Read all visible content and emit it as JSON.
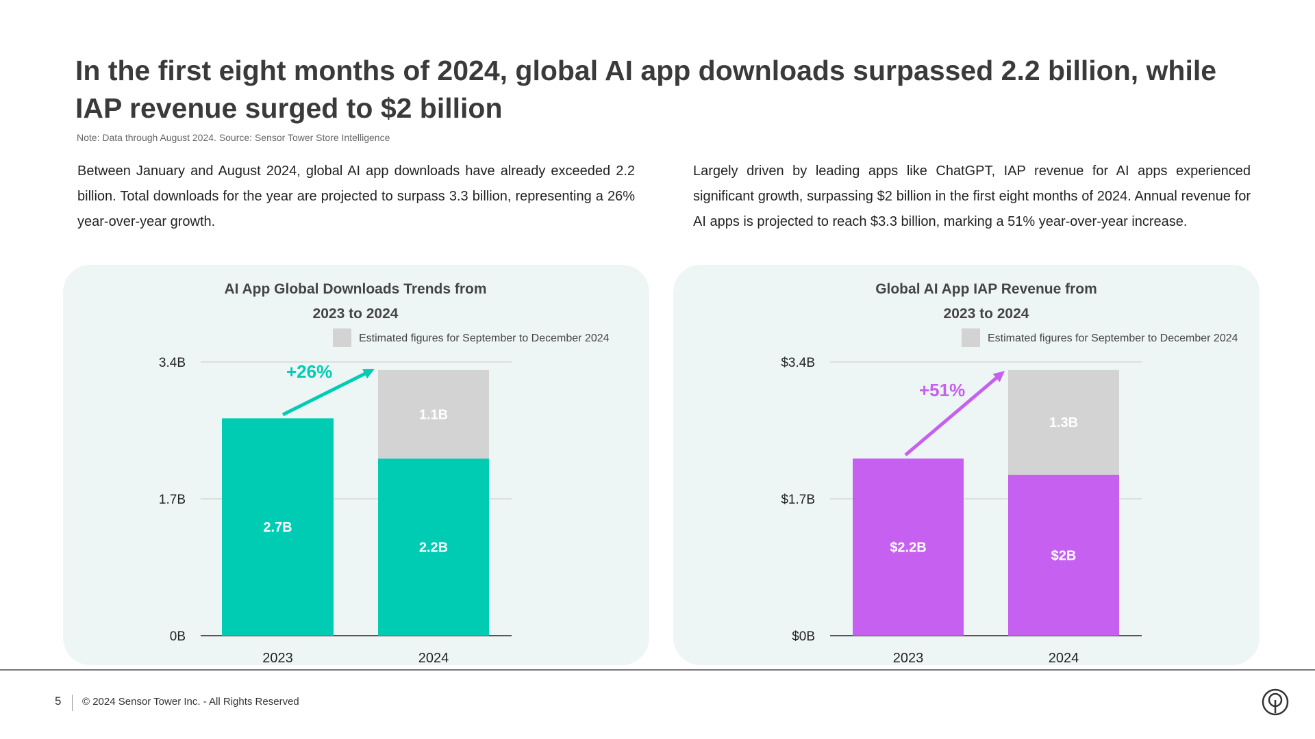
{
  "header": {
    "title": "In the first eight months of 2024, global AI app downloads surpassed 2.2 billion, while IAP revenue surged to $2 billion",
    "note": "Note: Data through August 2024. Source: Sensor Tower Store Intelligence"
  },
  "paragraphs": [
    "Between January and August 2024, global AI app downloads have already exceeded 2.2 billion. Total downloads for the year are projected to surpass 3.3 billion, representing a 26% year-over-year growth.",
    "Largely driven by leading apps like ChatGPT, IAP revenue for AI apps experienced significant growth, surpassing $2 billion in the first eight months of 2024. Annual revenue for AI apps is projected to reach $3.3 billion, marking a 51% year-over-year increase."
  ],
  "chart_data": [
    {
      "type": "bar",
      "stacked": true,
      "title_lines": [
        "AI App Global Downloads Trends from",
        "2023 to 2024"
      ],
      "categories": [
        "2023",
        "2024"
      ],
      "series": [
        {
          "values": [
            2.7,
            2.2
          ],
          "labels": [
            "2.7B",
            "2.2B"
          ],
          "color": "#00ccb4"
        },
        {
          "name": "Estimated figures for September to December 2024",
          "values": [
            0,
            1.1
          ],
          "labels": [
            "",
            "1.1B"
          ],
          "color": "#d3d3d3"
        }
      ],
      "yticks": [
        0,
        1.7,
        3.4
      ],
      "ytick_labels": [
        "0B",
        "1.7B",
        "3.4B"
      ],
      "ylim": [
        0,
        3.4
      ],
      "grid": true,
      "legend_position": "top-right",
      "annotation": {
        "text": "+26%",
        "color": "#00ccb4"
      }
    },
    {
      "type": "bar",
      "stacked": true,
      "title_lines": [
        "Global AI App IAP Revenue from",
        "2023 to 2024"
      ],
      "categories": [
        "2023",
        "2024"
      ],
      "series": [
        {
          "values": [
            2.2,
            2.0
          ],
          "labels": [
            "$2.2B",
            "$2B"
          ],
          "color": "#c660f0"
        },
        {
          "name": "Estimated figures for September to December 2024",
          "values": [
            0,
            1.3
          ],
          "labels": [
            "",
            "1.3B"
          ],
          "color": "#d3d3d3"
        }
      ],
      "yticks": [
        0,
        1.7,
        3.4
      ],
      "ytick_labels": [
        "$0B",
        "$1.7B",
        "$3.4B"
      ],
      "ylim": [
        0,
        3.4
      ],
      "grid": true,
      "legend_position": "top-right",
      "annotation": {
        "text": "+51%",
        "color": "#c660f0"
      }
    }
  ],
  "footer": {
    "page": "5",
    "copyright": "© 2024 Sensor Tower Inc. - All Rights Reserved",
    "logo_icon": "sensor-tower-logo-icon"
  }
}
